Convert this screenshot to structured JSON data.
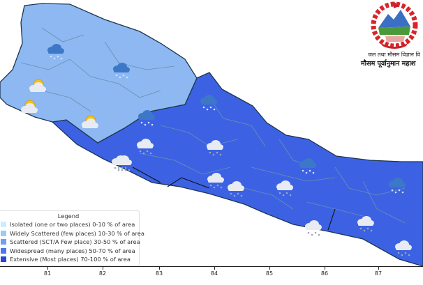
{
  "header": {
    "org_line1": "जल तथा मौसम विज्ञान वि",
    "org_line2": "मौसम पूर्वानुमान महाश",
    "emblem": "nepal-national-emblem"
  },
  "map": {
    "region_colors": {
      "west": "#8db8f1",
      "east": "#3c62e3",
      "border": "#2c5a8a",
      "district": "#6b8fb0"
    },
    "icons": [
      "rain-cloud",
      "rain-cloud",
      "sun-cloud",
      "sun-cloud",
      "sun-cloud",
      "rain-cloud",
      "rain-cloud",
      "snow-rain-cloud",
      "snow-rain-cloud",
      "snow-rain-cloud",
      "snow-rain-cloud",
      "snow-rain-cloud",
      "snow-rain-cloud",
      "rain-cloud",
      "snow-rain-cloud",
      "snow-rain-cloud",
      "rain-cloud",
      "snow-rain-cloud",
      "snow-rain-cloud"
    ]
  },
  "legend": {
    "title": "Legend",
    "items": [
      {
        "label": "Isolated (one or two places)  0-10 % of area",
        "color": "#c8effc"
      },
      {
        "label": "Widely Scattered (few places)  10-30 % of area",
        "color": "#9ccaf8"
      },
      {
        "label": "Scattered (SCT/A Few place)  30-50 % of area",
        "color": "#6ea0f3"
      },
      {
        "label": "Widespread (many places)  50-70 % of area",
        "color": "#4a77ec"
      },
      {
        "label": "Extensive (Most places)  70-100 % of area",
        "color": "#2646d8"
      }
    ]
  },
  "x_axis": {
    "ticks": [
      "81",
      "82",
      "83",
      "84",
      "85",
      "86",
      "87"
    ]
  }
}
